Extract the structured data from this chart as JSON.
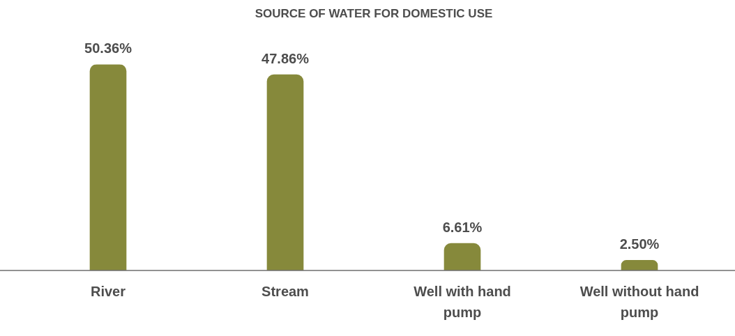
{
  "chart_data": {
    "type": "bar",
    "title": "SOURCE OF WATER FOR DOMESTIC USE",
    "categories": [
      "River",
      "Stream",
      "Well with hand pump",
      "Well without hand pump"
    ],
    "values": [
      50.36,
      47.86,
      6.61,
      2.5
    ],
    "value_labels": [
      "50.36%",
      "47.86%",
      "6.61%",
      "2.50%"
    ],
    "color": "#86893b"
  }
}
